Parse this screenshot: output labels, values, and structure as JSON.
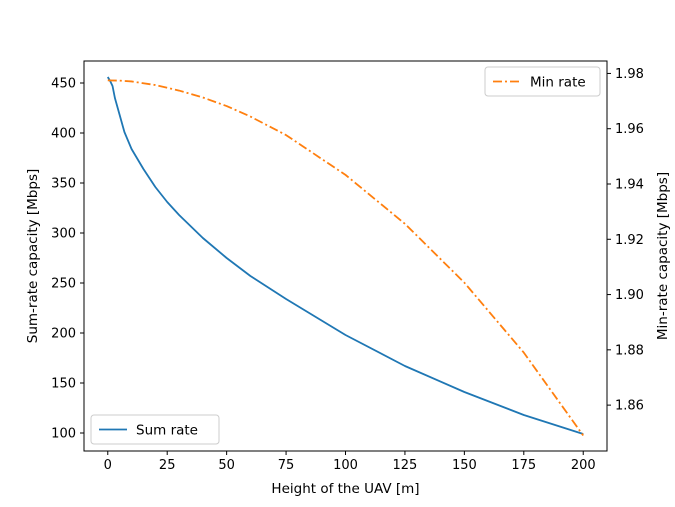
{
  "chart_data": {
    "type": "line",
    "title": "",
    "xlabel": "Height of the UAV [m]",
    "ylabel_left": "Sum-rate capacity [Mbps]",
    "ylabel_right": "Min-rate capacity [Mbps]",
    "xlim": [
      -10,
      210
    ],
    "ylim_left": [
      82,
      472
    ],
    "ylim_right": [
      1.8434,
      1.9845
    ],
    "x_ticks": [
      0,
      25,
      50,
      75,
      100,
      125,
      150,
      175,
      200
    ],
    "y_ticks_left": [
      100,
      150,
      200,
      250,
      300,
      350,
      400,
      450
    ],
    "y_ticks_right": [
      1.86,
      1.88,
      1.9,
      1.92,
      1.94,
      1.96,
      1.98
    ],
    "y_tick_labels_right": [
      "1.86",
      "1.88",
      "1.90",
      "1.92",
      "1.94",
      "1.96",
      "1.98"
    ],
    "grid": false,
    "series": [
      {
        "name": "Sum rate",
        "axis": "left",
        "color": "#1f77b4",
        "style": "solid",
        "legend_position": "lower-left",
        "x": [
          0,
          1,
          2,
          3,
          5,
          7,
          10,
          15,
          20,
          25,
          30,
          40,
          50,
          60,
          75,
          100,
          125,
          150,
          175,
          200
        ],
        "y": [
          456,
          452,
          447,
          435,
          418,
          401,
          384,
          364,
          346,
          331,
          318,
          295,
          275,
          257,
          234,
          198,
          167,
          141,
          118,
          99
        ]
      },
      {
        "name": "Min rate",
        "axis": "right",
        "color": "#ff7f0e",
        "style": "dashdot",
        "legend_position": "upper-right",
        "x": [
          0,
          5,
          10,
          20,
          30,
          40,
          50,
          60,
          75,
          100,
          125,
          150,
          175,
          200
        ],
        "y": [
          1.9775,
          1.9774,
          1.9771,
          1.9758,
          1.9738,
          1.9713,
          1.9682,
          1.9644,
          1.9577,
          1.9433,
          1.9256,
          1.9043,
          1.879,
          1.849
        ]
      }
    ]
  }
}
